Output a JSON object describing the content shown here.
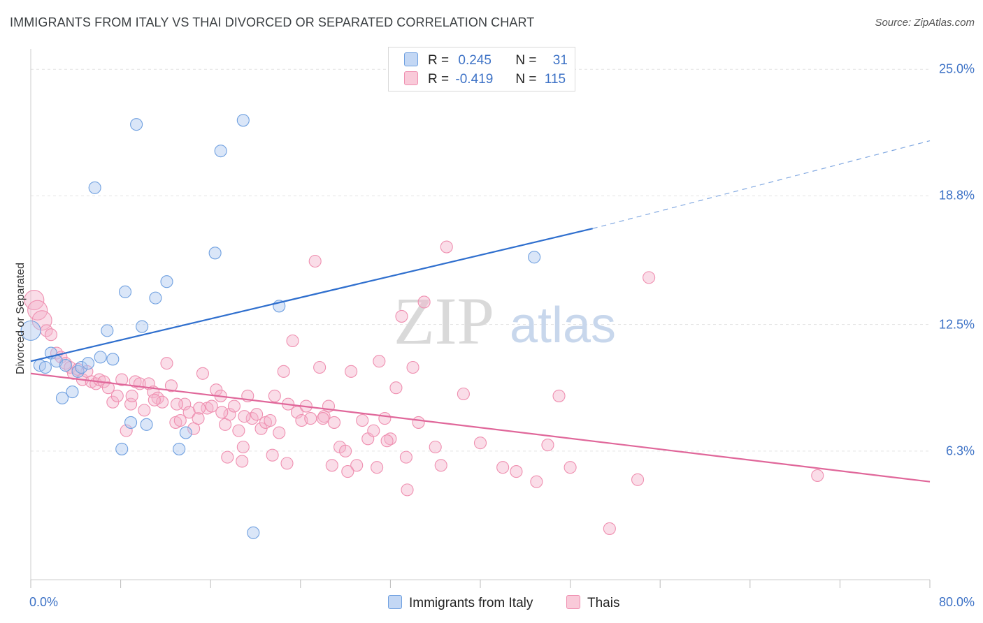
{
  "header": {
    "title": "IMMIGRANTS FROM ITALY VS THAI DIVORCED OR SEPARATED CORRELATION CHART",
    "source": "Source: ZipAtlas.com"
  },
  "watermark": {
    "zip": "ZIP",
    "atlas": "atlas"
  },
  "legend": {
    "r_label": "R =",
    "n_label": "N =",
    "italy": {
      "r": "0.245",
      "n": "31",
      "color": "#6fa0e0"
    },
    "thais": {
      "r": "-0.419",
      "n": "115",
      "color": "#ef8fb0"
    }
  },
  "bottom_legend": {
    "italy": "Immigrants from Italy",
    "thais": "Thais"
  },
  "chart_data": {
    "type": "scatter",
    "title": "IMMIGRANTS FROM ITALY VS THAI DIVORCED OR SEPARATED CORRELATION CHART",
    "xlabel": "",
    "ylabel": "Divorced or Separated",
    "xlim": [
      0,
      80
    ],
    "ylim": [
      0,
      26
    ],
    "x_tick_labels": [
      "0.0%",
      "80.0%"
    ],
    "y_ticks": [
      6.3,
      12.5,
      18.8,
      25.0
    ],
    "y_tick_labels": [
      "6.3%",
      "12.5%",
      "18.8%",
      "25.0%"
    ],
    "grid": true,
    "legend_position": "top-center",
    "series": [
      {
        "name": "Immigrants from Italy",
        "color": "#6fa0e0",
        "trend": {
          "x0": 0,
          "y0": 10.7,
          "x1": 50,
          "y1": 17.2,
          "dash_to_x": 80,
          "dash_to_y": 21.5
        },
        "points": [
          [
            0,
            12.2
          ],
          [
            0.8,
            10.5
          ],
          [
            1.3,
            10.4
          ],
          [
            1.8,
            11.1
          ],
          [
            2.3,
            10.7
          ],
          [
            2.8,
            8.9
          ],
          [
            3.1,
            10.5
          ],
          [
            3.7,
            9.2
          ],
          [
            4.2,
            10.2
          ],
          [
            4.5,
            10.4
          ],
          [
            5.1,
            10.6
          ],
          [
            6.2,
            10.9
          ],
          [
            6.8,
            12.2
          ],
          [
            7.3,
            10.8
          ],
          [
            8.1,
            6.4
          ],
          [
            8.4,
            14.1
          ],
          [
            8.9,
            7.7
          ],
          [
            9.4,
            22.3
          ],
          [
            9.9,
            12.4
          ],
          [
            10.3,
            7.6
          ],
          [
            11.1,
            13.8
          ],
          [
            12.1,
            14.6
          ],
          [
            13.2,
            6.4
          ],
          [
            13.8,
            7.2
          ],
          [
            5.7,
            19.2
          ],
          [
            16.4,
            16.0
          ],
          [
            16.9,
            21.0
          ],
          [
            18.9,
            22.5
          ],
          [
            19.8,
            2.3
          ],
          [
            22.1,
            13.4
          ],
          [
            44.8,
            15.8
          ]
        ]
      },
      {
        "name": "Thais",
        "color": "#ef8fb0",
        "trend": {
          "x0": 0,
          "y0": 10.1,
          "x1": 80,
          "y1": 4.8
        },
        "points": [
          [
            0.3,
            13.7
          ],
          [
            0.6,
            13.2
          ],
          [
            1.0,
            12.7
          ],
          [
            1.4,
            12.2
          ],
          [
            1.8,
            12.0
          ],
          [
            2.3,
            11.1
          ],
          [
            2.7,
            10.9
          ],
          [
            3.1,
            10.6
          ],
          [
            3.5,
            10.4
          ],
          [
            3.8,
            10.1
          ],
          [
            4.2,
            10.3
          ],
          [
            4.6,
            9.8
          ],
          [
            5.0,
            10.2
          ],
          [
            5.4,
            9.7
          ],
          [
            5.8,
            9.6
          ],
          [
            6.1,
            9.8
          ],
          [
            6.5,
            9.7
          ],
          [
            6.9,
            9.4
          ],
          [
            7.3,
            8.7
          ],
          [
            7.7,
            9.0
          ],
          [
            8.1,
            9.8
          ],
          [
            8.5,
            7.3
          ],
          [
            8.9,
            8.6
          ],
          [
            9.3,
            9.7
          ],
          [
            9.7,
            9.6
          ],
          [
            10.1,
            8.3
          ],
          [
            10.5,
            9.6
          ],
          [
            10.9,
            9.2
          ],
          [
            11.3,
            8.9
          ],
          [
            11.7,
            8.7
          ],
          [
            12.1,
            10.6
          ],
          [
            12.5,
            9.5
          ],
          [
            12.9,
            7.7
          ],
          [
            13.3,
            7.8
          ],
          [
            13.7,
            8.6
          ],
          [
            14.1,
            8.2
          ],
          [
            14.5,
            7.4
          ],
          [
            14.9,
            7.9
          ],
          [
            15.3,
            10.1
          ],
          [
            15.7,
            8.4
          ],
          [
            16.1,
            8.5
          ],
          [
            16.5,
            9.3
          ],
          [
            16.9,
            9.0
          ],
          [
            17.3,
            7.6
          ],
          [
            17.7,
            8.1
          ],
          [
            18.1,
            8.5
          ],
          [
            18.5,
            7.3
          ],
          [
            18.9,
            6.5
          ],
          [
            19.3,
            9.0
          ],
          [
            19.7,
            7.9
          ],
          [
            20.1,
            8.1
          ],
          [
            20.5,
            7.4
          ],
          [
            20.9,
            7.7
          ],
          [
            21.3,
            7.8
          ],
          [
            21.7,
            9.0
          ],
          [
            22.1,
            7.2
          ],
          [
            22.5,
            10.2
          ],
          [
            22.9,
            8.6
          ],
          [
            23.3,
            11.7
          ],
          [
            23.7,
            8.2
          ],
          [
            24.1,
            7.8
          ],
          [
            24.5,
            8.5
          ],
          [
            24.9,
            7.9
          ],
          [
            25.3,
            15.6
          ],
          [
            25.7,
            10.4
          ],
          [
            26.1,
            8.0
          ],
          [
            26.5,
            8.5
          ],
          [
            27.0,
            7.7
          ],
          [
            27.5,
            6.5
          ],
          [
            28.0,
            6.3
          ],
          [
            28.5,
            10.2
          ],
          [
            29.0,
            5.6
          ],
          [
            29.5,
            7.8
          ],
          [
            30.0,
            6.9
          ],
          [
            30.5,
            7.3
          ],
          [
            31.0,
            10.7
          ],
          [
            31.5,
            7.9
          ],
          [
            32.0,
            6.9
          ],
          [
            32.5,
            9.4
          ],
          [
            33.0,
            12.9
          ],
          [
            33.5,
            4.4
          ],
          [
            34.0,
            10.4
          ],
          [
            34.5,
            7.7
          ],
          [
            35.0,
            13.6
          ],
          [
            36.0,
            6.5
          ],
          [
            37.0,
            16.3
          ],
          [
            38.5,
            9.1
          ],
          [
            40.0,
            6.7
          ],
          [
            42.0,
            5.5
          ],
          [
            45.0,
            4.8
          ],
          [
            46.0,
            6.6
          ],
          [
            47.0,
            9.0
          ],
          [
            48.0,
            5.5
          ],
          [
            51.5,
            2.5
          ],
          [
            54.0,
            4.9
          ],
          [
            55.0,
            14.8
          ],
          [
            70.0,
            5.1
          ],
          [
            17.5,
            6.0
          ],
          [
            18.8,
            5.8
          ],
          [
            21.5,
            6.1
          ],
          [
            26.8,
            5.6
          ],
          [
            30.8,
            5.5
          ],
          [
            33.4,
            6.0
          ],
          [
            36.5,
            5.6
          ],
          [
            43.2,
            5.3
          ],
          [
            9.0,
            9.0
          ],
          [
            11.0,
            8.8
          ],
          [
            13.0,
            8.6
          ],
          [
            15.0,
            8.4
          ],
          [
            17.0,
            8.2
          ],
          [
            19.0,
            8.0
          ],
          [
            28.2,
            5.3
          ],
          [
            31.7,
            6.8
          ],
          [
            26.0,
            7.9
          ],
          [
            22.8,
            5.7
          ]
        ]
      }
    ]
  }
}
